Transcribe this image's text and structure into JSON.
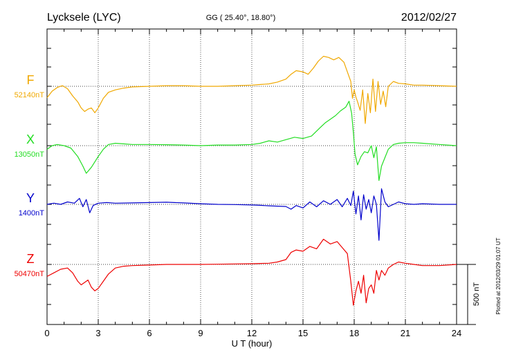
{
  "header": {
    "station": "Lycksele (LYC)",
    "coords": "GG ( 25.40°,  18.80°)",
    "date": "2012/02/27"
  },
  "side_note": "Plotted at 2012/03/29 01:07 UT",
  "scale_label": "500 nT",
  "chart_data": {
    "type": "line",
    "title": "Lycksele (LYC)",
    "xlabel": "U T (hour)",
    "xlim": [
      0,
      24
    ],
    "xticks": [
      0,
      3,
      6,
      9,
      12,
      15,
      18,
      21,
      24
    ],
    "grid": true,
    "scale_bar_nT": 500,
    "series": [
      {
        "name": "F",
        "baseline_label": "52140nT",
        "baseline_nT": 52140,
        "color": "#f0a800",
        "x": [
          0,
          0.3,
          0.6,
          0.9,
          1.2,
          1.5,
          1.8,
          2.0,
          2.2,
          2.4,
          2.6,
          2.8,
          3.0,
          3.3,
          3.6,
          4.0,
          4.5,
          5,
          6,
          7,
          8,
          9,
          10,
          11,
          12,
          12.5,
          13,
          13.5,
          14,
          14.3,
          14.6,
          15,
          15.3,
          15.6,
          15.9,
          16.2,
          16.5,
          16.8,
          17.1,
          17.4,
          17.6,
          17.8,
          17.9,
          18.0,
          18.1,
          18.2,
          18.35,
          18.5,
          18.65,
          18.8,
          18.95,
          19.1,
          19.25,
          19.4,
          19.55,
          19.7,
          19.85,
          20.0,
          20.3,
          20.6,
          21,
          21.5,
          22,
          23,
          24
        ],
        "y": [
          52045,
          52100,
          52130,
          52145,
          52120,
          52060,
          52010,
          51960,
          51930,
          51950,
          51960,
          51920,
          51960,
          52040,
          52090,
          52110,
          52125,
          52135,
          52140,
          52145,
          52145,
          52140,
          52140,
          52145,
          52150,
          52155,
          52160,
          52175,
          52200,
          52240,
          52270,
          52260,
          52240,
          52290,
          52350,
          52390,
          52380,
          52360,
          52380,
          52340,
          52260,
          52180,
          52040,
          52110,
          52050,
          52010,
          51940,
          52110,
          51830,
          52080,
          51920,
          52200,
          51930,
          52180,
          51990,
          52100,
          51970,
          52140,
          52180,
          52165,
          52160,
          52150,
          52150,
          52145,
          52140
        ]
      },
      {
        "name": "X",
        "baseline_label": "13050nT",
        "baseline_nT": 13050,
        "color": "#22dd22",
        "x": [
          0,
          0.3,
          0.6,
          1.0,
          1.4,
          1.8,
          2.1,
          2.3,
          2.6,
          3.0,
          3.3,
          3.6,
          4.0,
          4.5,
          5,
          6,
          7,
          8,
          9,
          10,
          11,
          12,
          12.5,
          13,
          13.5,
          14,
          14.5,
          15,
          15.5,
          16,
          16.3,
          16.6,
          16.9,
          17.2,
          17.5,
          17.7,
          17.85,
          17.95,
          18.05,
          18.2,
          18.4,
          18.6,
          18.8,
          19.0,
          19.15,
          19.3,
          19.45,
          19.6,
          19.8,
          20.0,
          20.3,
          20.6,
          21,
          21.5,
          22,
          23,
          24
        ],
        "y": [
          13020,
          13050,
          13060,
          13050,
          13030,
          12960,
          12880,
          12820,
          12870,
          12960,
          13020,
          13060,
          13070,
          13065,
          13060,
          13060,
          13058,
          13055,
          13050,
          13055,
          13055,
          13060,
          13070,
          13090,
          13080,
          13100,
          13120,
          13110,
          13130,
          13200,
          13240,
          13270,
          13300,
          13340,
          13370,
          13420,
          13320,
          13160,
          12980,
          12890,
          12960,
          13000,
          12990,
          13050,
          12950,
          13040,
          12760,
          12880,
          12950,
          13020,
          13060,
          13070,
          13075,
          13075,
          13070,
          13060,
          13050
        ]
      },
      {
        "name": "Y",
        "baseline_label": "1400nT",
        "baseline_nT": 1400,
        "color": "#0000cc",
        "x": [
          0,
          0.4,
          0.8,
          1.2,
          1.6,
          1.9,
          2.1,
          2.3,
          2.5,
          2.7,
          3.0,
          3.5,
          4,
          5,
          6,
          7,
          8,
          9,
          10,
          11,
          12,
          12.5,
          13,
          13.5,
          14,
          14.3,
          14.6,
          15,
          15.4,
          15.8,
          16.2,
          16.6,
          17.0,
          17.3,
          17.6,
          17.8,
          17.95,
          18.1,
          18.25,
          18.4,
          18.55,
          18.7,
          18.85,
          19.0,
          19.15,
          19.3,
          19.45,
          19.6,
          19.8,
          20.0,
          20.3,
          20.6,
          21,
          21.5,
          22,
          23,
          24
        ],
        "y": [
          1400,
          1410,
          1400,
          1420,
          1410,
          1450,
          1380,
          1440,
          1330,
          1390,
          1410,
          1415,
          1410,
          1412,
          1415,
          1418,
          1412,
          1405,
          1400,
          1398,
          1395,
          1392,
          1388,
          1385,
          1382,
          1360,
          1390,
          1370,
          1420,
          1380,
          1430,
          1400,
          1440,
          1380,
          1450,
          1390,
          1510,
          1320,
          1470,
          1270,
          1480,
          1360,
          1440,
          1330,
          1470,
          1400,
          1100,
          1530,
          1420,
          1380,
          1400,
          1420,
          1405,
          1400,
          1405,
          1400,
          1400
        ]
      },
      {
        "name": "Z",
        "baseline_label": "50470nT",
        "baseline_nT": 50470,
        "color": "#ee0000",
        "x": [
          0,
          0.4,
          0.8,
          1.2,
          1.5,
          1.8,
          2.0,
          2.2,
          2.4,
          2.6,
          2.8,
          3.0,
          3.3,
          3.6,
          4.0,
          4.5,
          5,
          6,
          7,
          8,
          9,
          10,
          11,
          12,
          12.5,
          13,
          13.5,
          14,
          14.3,
          14.6,
          15,
          15.4,
          15.8,
          16.2,
          16.6,
          17.0,
          17.3,
          17.6,
          17.8,
          17.95,
          18.1,
          18.25,
          18.4,
          18.55,
          18.7,
          18.85,
          19.0,
          19.15,
          19.3,
          19.45,
          19.6,
          19.8,
          20.0,
          20.3,
          20.6,
          21,
          21.5,
          22,
          23,
          24
        ],
        "y": [
          50370,
          50400,
          50430,
          50440,
          50400,
          50330,
          50300,
          50320,
          50340,
          50280,
          50250,
          50270,
          50330,
          50390,
          50440,
          50455,
          50460,
          50465,
          50470,
          50470,
          50470,
          50472,
          50474,
          50476,
          50478,
          50480,
          50490,
          50510,
          50570,
          50590,
          50580,
          50620,
          50600,
          50680,
          50640,
          50660,
          50610,
          50560,
          50330,
          50130,
          50250,
          50330,
          50230,
          50380,
          50150,
          50270,
          50300,
          50230,
          50420,
          50340,
          50420,
          50380,
          50440,
          50470,
          50490,
          50480,
          50470,
          50460,
          50460,
          50470
        ]
      }
    ]
  }
}
